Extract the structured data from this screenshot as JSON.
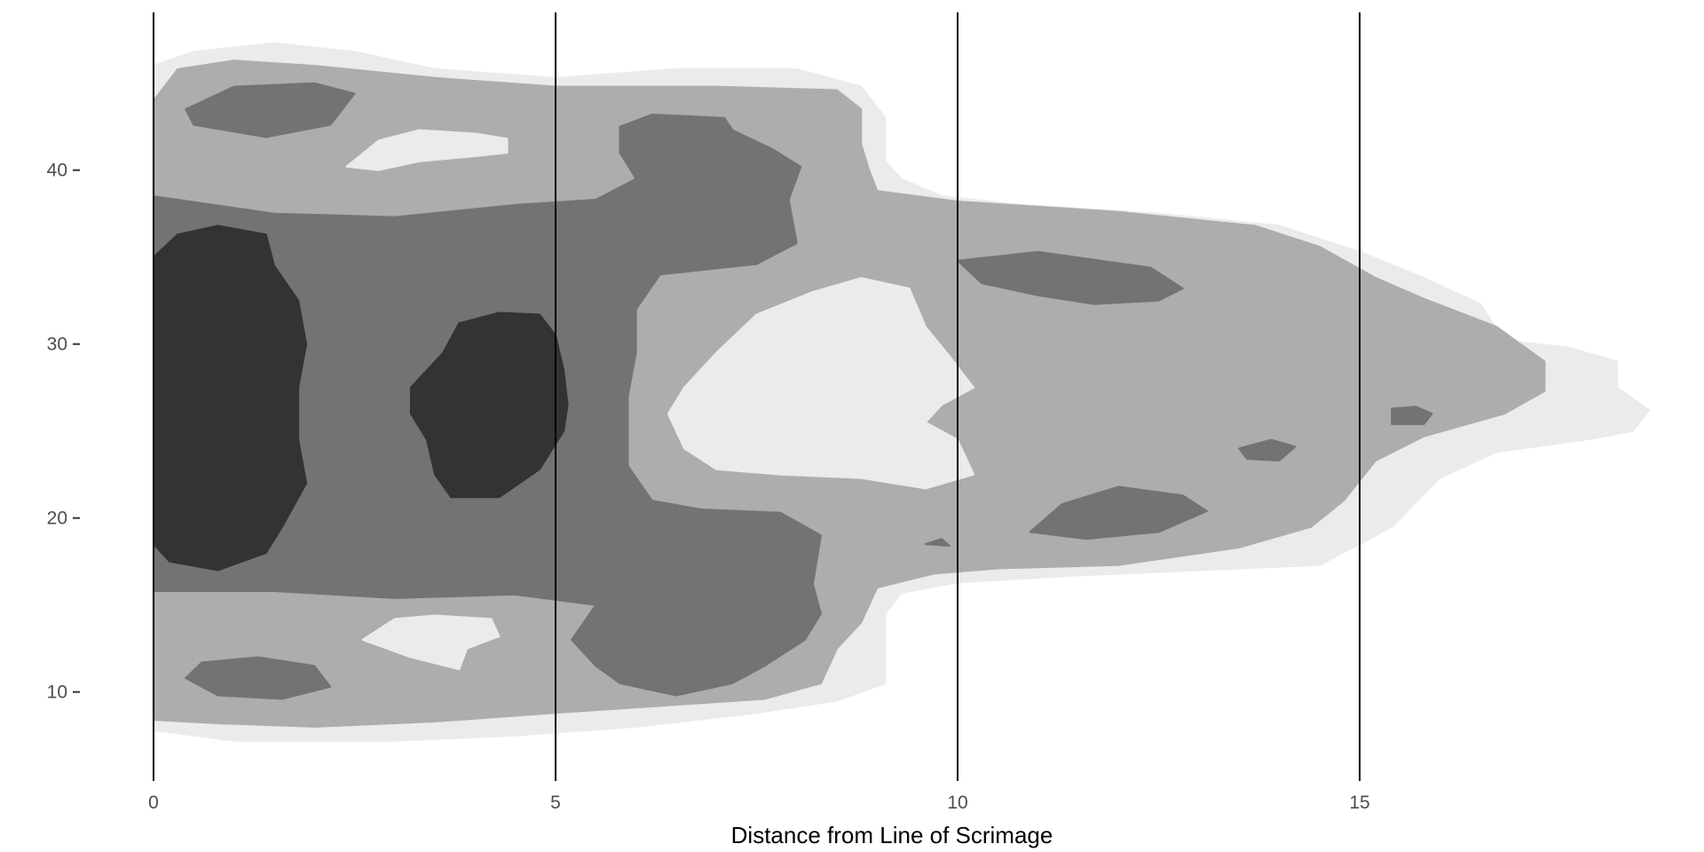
{
  "chart_data": {
    "type": "density-contour",
    "title": "",
    "xlabel": "Distance from Line of Scrimage",
    "ylabel": "",
    "xlim": [
      0,
      18.7
    ],
    "ylim": [
      4.5,
      49
    ],
    "x_ticks": [
      {
        "value": 0,
        "label": "0"
      },
      {
        "value": 5,
        "label": "5"
      },
      {
        "value": 10,
        "label": "10"
      },
      {
        "value": 15,
        "label": "15"
      }
    ],
    "y_ticks": [
      {
        "value": 10,
        "label": "10"
      },
      {
        "value": 20,
        "label": "20"
      },
      {
        "value": 30,
        "label": "30"
      },
      {
        "value": 40,
        "label": "40"
      }
    ],
    "vertical_lines": [
      0,
      5,
      10,
      15
    ],
    "grid": false,
    "legend": "none",
    "level_colors": [
      "#ebebeb",
      "#adadad",
      "#737373",
      "#333333"
    ],
    "levels": [
      {
        "level": 1,
        "color": "#ebebeb",
        "regions": [
          [
            [
              0,
              46
            ],
            [
              0.5,
              46.8
            ],
            [
              1.5,
              47.3
            ],
            [
              2.5,
              46.8
            ],
            [
              3.5,
              45.8
            ],
            [
              5,
              45.3
            ],
            [
              6.5,
              45.8
            ],
            [
              8,
              45.8
            ],
            [
              8.8,
              44.8
            ],
            [
              9.1,
              43
            ],
            [
              9.1,
              40.5
            ],
            [
              9.3,
              39.5
            ],
            [
              9.8,
              38.5
            ],
            [
              10.8,
              38
            ],
            [
              12.5,
              37.5
            ],
            [
              14,
              36.8
            ],
            [
              15,
              35.3
            ],
            [
              15.8,
              33.8
            ],
            [
              16.5,
              32.3
            ],
            [
              16.8,
              30.2
            ],
            [
              17.6,
              29.8
            ],
            [
              18.2,
              29
            ],
            [
              18.2,
              27.5
            ],
            [
              18.6,
              26.2
            ],
            [
              18.4,
              25
            ],
            [
              17.8,
              24.5
            ],
            [
              16.7,
              23.8
            ],
            [
              16,
              22.3
            ],
            [
              15.4,
              19.5
            ],
            [
              15,
              18.5
            ],
            [
              14.5,
              17.3
            ],
            [
              13,
              17
            ],
            [
              11.5,
              16.7
            ],
            [
              10,
              16.3
            ],
            [
              9.3,
              15.7
            ],
            [
              9.1,
              14.5
            ],
            [
              9.1,
              12.5
            ],
            [
              9.1,
              10.5
            ],
            [
              8.5,
              9.5
            ],
            [
              7.5,
              8.8
            ],
            [
              6,
              8
            ],
            [
              4.5,
              7.5
            ],
            [
              3,
              7.2
            ],
            [
              1,
              7.2
            ],
            [
              0,
              7.8
            ]
          ]
        ]
      },
      {
        "level": 2,
        "color": "#adadad",
        "regions": [
          [
            [
              0,
              44
            ],
            [
              0.3,
              45.8
            ],
            [
              1,
              46.3
            ],
            [
              2,
              46
            ],
            [
              3.5,
              45.3
            ],
            [
              5,
              44.8
            ],
            [
              7,
              44.8
            ],
            [
              8.5,
              44.6
            ],
            [
              8.8,
              43.5
            ],
            [
              8.8,
              41.5
            ],
            [
              8.9,
              40
            ],
            [
              9,
              38.8
            ],
            [
              10,
              38.2
            ],
            [
              12,
              37.6
            ],
            [
              13.7,
              36.8
            ],
            [
              14.5,
              35.6
            ],
            [
              15.2,
              33.8
            ],
            [
              15.8,
              32.6
            ],
            [
              16.7,
              31
            ],
            [
              17.3,
              29
            ],
            [
              17.3,
              27.3
            ],
            [
              16.8,
              26
            ],
            [
              15.8,
              24.7
            ],
            [
              15.2,
              23.3
            ],
            [
              14.8,
              21
            ],
            [
              14.4,
              19.5
            ],
            [
              13.5,
              18.3
            ],
            [
              12,
              17.3
            ],
            [
              10.5,
              17.1
            ],
            [
              9.7,
              16.8
            ],
            [
              9,
              16
            ],
            [
              8.8,
              14
            ],
            [
              8.5,
              12.5
            ],
            [
              8.3,
              10.5
            ],
            [
              7.6,
              9.6
            ],
            [
              6.3,
              9.2
            ],
            [
              5,
              8.8
            ],
            [
              3.5,
              8.3
            ],
            [
              2,
              8
            ],
            [
              0.8,
              8.2
            ],
            [
              0,
              8.4
            ]
          ]
        ]
      },
      {
        "level": 3,
        "color": "#737373",
        "regions": [
          [
            [
              0,
              38.5
            ],
            [
              1.5,
              37.5
            ],
            [
              3,
              37.3
            ],
            [
              4.5,
              38
            ],
            [
              5.5,
              38.3
            ],
            [
              6,
              39.5
            ],
            [
              5.8,
              41
            ],
            [
              5.8,
              42.5
            ],
            [
              6.2,
              43.2
            ],
            [
              7.1,
              43
            ],
            [
              7.2,
              42.3
            ],
            [
              7.7,
              41.2
            ],
            [
              8.05,
              40.2
            ],
            [
              7.9,
              38.3
            ],
            [
              8,
              35.8
            ],
            [
              7.5,
              34.6
            ],
            [
              6.3,
              34
            ],
            [
              6,
              32
            ],
            [
              6,
              29.5
            ],
            [
              5.9,
              27
            ],
            [
              5.9,
              23
            ],
            [
              6.2,
              21
            ],
            [
              6.8,
              20.5
            ],
            [
              7.8,
              20.3
            ],
            [
              8.3,
              19
            ],
            [
              8.2,
              16.2
            ],
            [
              8.3,
              14.5
            ],
            [
              8.1,
              13
            ],
            [
              7.6,
              11.5
            ],
            [
              7.2,
              10.5
            ],
            [
              6.5,
              9.8
            ],
            [
              5.8,
              10.5
            ],
            [
              5.5,
              11.5
            ],
            [
              5.2,
              13
            ],
            [
              5.5,
              15
            ],
            [
              4.5,
              15.6
            ],
            [
              3,
              15.4
            ],
            [
              1.5,
              15.8
            ],
            [
              0,
              15.8
            ]
          ],
          [
            [
              0.4,
              43.5
            ],
            [
              1,
              44.8
            ],
            [
              2,
              45
            ],
            [
              2.5,
              44.4
            ],
            [
              2.2,
              42.6
            ],
            [
              1.4,
              41.9
            ],
            [
              0.5,
              42.6
            ]
          ],
          [
            [
              0.4,
              10.8
            ],
            [
              0.6,
              11.7
            ],
            [
              1.3,
              12
            ],
            [
              2,
              11.5
            ],
            [
              2.2,
              10.3
            ],
            [
              1.6,
              9.6
            ],
            [
              0.8,
              9.8
            ]
          ],
          [
            [
              10,
              34.8
            ],
            [
              11,
              35.3
            ],
            [
              12.4,
              34.4
            ],
            [
              12.8,
              33.2
            ],
            [
              12.5,
              32.5
            ],
            [
              11.7,
              32.3
            ],
            [
              11,
              32.8
            ],
            [
              10.3,
              33.5
            ]
          ],
          [
            [
              10.9,
              19.2
            ],
            [
              11.3,
              20.8
            ],
            [
              12,
              21.8
            ],
            [
              12.8,
              21.3
            ],
            [
              13.1,
              20.4
            ],
            [
              12.5,
              19.2
            ],
            [
              11.6,
              18.8
            ]
          ],
          [
            [
              9.8,
              18.8
            ],
            [
              9.9,
              18.4
            ],
            [
              9.6,
              18.5
            ]
          ],
          [
            [
              13.5,
              24
            ],
            [
              13.9,
              24.5
            ],
            [
              14.2,
              24.1
            ],
            [
              14,
              23.3
            ],
            [
              13.6,
              23.4
            ]
          ],
          [
            [
              15.4,
              25.4
            ],
            [
              15.8,
              25.4
            ],
            [
              15.9,
              26
            ],
            [
              15.7,
              26.4
            ],
            [
              15.4,
              26.3
            ]
          ]
        ]
      },
      {
        "level": 4,
        "color": "#333333",
        "regions": [
          [
            [
              0,
              35
            ],
            [
              0.3,
              36.3
            ],
            [
              0.8,
              36.8
            ],
            [
              1.4,
              36.3
            ],
            [
              1.5,
              34.5
            ],
            [
              1.8,
              32.5
            ],
            [
              1.9,
              30
            ],
            [
              1.8,
              27.5
            ],
            [
              1.8,
              24.5
            ],
            [
              1.9,
              22
            ],
            [
              1.6,
              19.5
            ],
            [
              1.4,
              18
            ],
            [
              0.8,
              17
            ],
            [
              0.2,
              17.5
            ],
            [
              0,
              18.5
            ]
          ],
          [
            [
              3.2,
              27.5
            ],
            [
              3.6,
              29.5
            ],
            [
              3.8,
              31.2
            ],
            [
              4.3,
              31.8
            ],
            [
              4.8,
              31.7
            ],
            [
              5,
              30.5
            ],
            [
              5.1,
              28.5
            ],
            [
              5.15,
              26.5
            ],
            [
              5.1,
              25
            ],
            [
              4.8,
              22.8
            ],
            [
              4.3,
              21.2
            ],
            [
              3.7,
              21.2
            ],
            [
              3.5,
              22.5
            ],
            [
              3.4,
              24.5
            ],
            [
              3.2,
              26
            ]
          ]
        ]
      },
      {
        "level": 0,
        "color": "#ebebeb",
        "regions": [
          [
            [
              2.4,
              40.2
            ],
            [
              2.8,
              41.7
            ],
            [
              3.3,
              42.3
            ],
            [
              4,
              42.1
            ],
            [
              4.4,
              41.8
            ],
            [
              4.4,
              41
            ],
            [
              4,
              40.8
            ],
            [
              3.3,
              40.5
            ],
            [
              2.8,
              40
            ]
          ],
          [
            [
              6.6,
              27.5
            ],
            [
              7,
              29.5
            ],
            [
              7.5,
              31.7
            ],
            [
              8.2,
              33
            ],
            [
              8.8,
              33.8
            ],
            [
              9.4,
              33.2
            ],
            [
              9.6,
              31
            ],
            [
              9.9,
              29.3
            ],
            [
              10.2,
              27.5
            ],
            [
              9.8,
              26.5
            ],
            [
              9.6,
              25.5
            ],
            [
              10,
              24.5
            ],
            [
              10.2,
              22.5
            ],
            [
              9.6,
              21.7
            ],
            [
              8.8,
              22.3
            ],
            [
              7.8,
              22.5
            ],
            [
              7,
              22.8
            ],
            [
              6.6,
              24
            ],
            [
              6.4,
              26
            ]
          ],
          [
            [
              2.6,
              13
            ],
            [
              3,
              14.2
            ],
            [
              3.5,
              14.4
            ],
            [
              4.2,
              14.2
            ],
            [
              4.3,
              13.2
            ],
            [
              3.9,
              12.5
            ],
            [
              3.8,
              11.3
            ],
            [
              3.2,
              12
            ]
          ]
        ]
      }
    ]
  }
}
